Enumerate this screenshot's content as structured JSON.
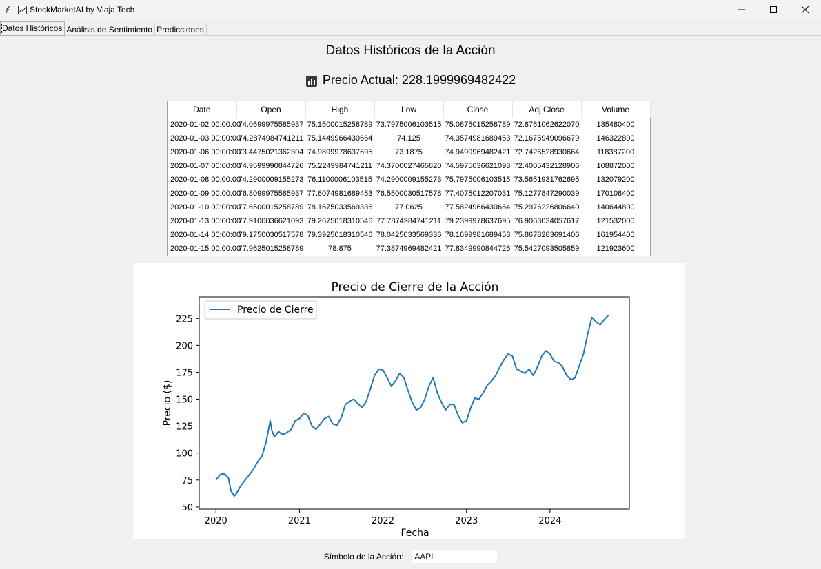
{
  "window": {
    "title": "StockMarketAI by Viaja Tech"
  },
  "tabs": [
    {
      "label": "Datos Históricos",
      "active": true
    },
    {
      "label": "Análisis de Sentimiento",
      "active": false
    },
    {
      "label": "Predicciones",
      "active": false
    }
  ],
  "main": {
    "heading": "Datos Históricos de la Acción",
    "price_label": "Precio Actual: 228.1999969482422"
  },
  "table": {
    "columns": [
      "Date",
      "Open",
      "High",
      "Low",
      "Close",
      "Adj Close",
      "Volume"
    ],
    "rows": [
      [
        "2020-01-02 00:00:00",
        "74.0599975585937",
        "75.1500015258789",
        "73.7975006103515",
        "75.0875015258789",
        "72.8761062622070",
        "135480400"
      ],
      [
        "2020-01-03 00:00:00",
        "74.2874984741211",
        "75.1449966430664",
        "74.125",
        "74.3574981689453",
        "72.1675949096679",
        "146322800"
      ],
      [
        "2020-01-06 00:00:00",
        "73.4475021362304",
        "74.9899978637695",
        "73.1875",
        "74.9499969482421",
        "72.7426528930664",
        "118387200"
      ],
      [
        "2020-01-07 00:00:00",
        "74.9599990844726",
        "75.2249984741211",
        "74.3700027465820",
        "74.5975036621093",
        "72.4005432128906",
        "108872000"
      ],
      [
        "2020-01-08 00:00:00",
        "74.2900009155273",
        "76.1100006103515",
        "74.2900009155273",
        "75.7975006103515",
        "73.5651931762695",
        "132079200"
      ],
      [
        "2020-01-09 00:00:00",
        "76.8099975585937",
        "77.6074981689453",
        "76.5500030517578",
        "77.4075012207031",
        "75.1277847290039",
        "170108400"
      ],
      [
        "2020-01-10 00:00:00",
        "77.6500015258789",
        "78.1675033569336",
        "77.0625",
        "77.5824966430664",
        "75.2976226806640",
        "140644800"
      ],
      [
        "2020-01-13 00:00:00",
        "77.9100036621093",
        "79.2675018310546",
        "77.7874984741211",
        "79.2399978637695",
        "76.9063034057617",
        "121532000"
      ],
      [
        "2020-01-14 00:00:00",
        "79.1750030517578",
        "79.3925018310546",
        "78.0425033569336",
        "78.1699981689453",
        "75.8678283691406",
        "161954400"
      ],
      [
        "2020-01-15 00:00:00",
        "77.9625015258789",
        "78.875",
        "77.3874969482421",
        "77.8349990844726",
        "75.5427093505859",
        "121923600"
      ]
    ]
  },
  "bottom": {
    "symbol_label": "Símbolo de la Acción:",
    "symbol_value": "AAPL"
  },
  "chart_data": {
    "type": "line",
    "title": "Precio de Cierre de la Acción",
    "xlabel": "Fecha",
    "ylabel": "Precio ($)",
    "legend": "top-left",
    "grid": false,
    "xlim": [
      2019.8,
      2024.95
    ],
    "ylim": [
      48,
      245
    ],
    "xticks": [
      2020,
      2021,
      2022,
      2023,
      2024
    ],
    "xtick_labels": [
      "2020",
      "2021",
      "2022",
      "2023",
      "2024"
    ],
    "yticks": [
      50,
      75,
      100,
      125,
      150,
      175,
      200,
      225
    ],
    "color": "#1f77b4",
    "series": [
      {
        "name": "Precio de Cierre",
        "x": [
          2020.0,
          2020.05,
          2020.1,
          2020.15,
          2020.18,
          2020.22,
          2020.25,
          2020.3,
          2020.35,
          2020.4,
          2020.45,
          2020.5,
          2020.55,
          2020.6,
          2020.65,
          2020.67,
          2020.7,
          2020.75,
          2020.8,
          2020.85,
          2020.9,
          2020.95,
          2021.0,
          2021.05,
          2021.1,
          2021.15,
          2021.2,
          2021.25,
          2021.3,
          2021.35,
          2021.4,
          2021.45,
          2021.5,
          2021.55,
          2021.6,
          2021.65,
          2021.7,
          2021.75,
          2021.8,
          2021.85,
          2021.9,
          2021.95,
          2022.0,
          2022.05,
          2022.1,
          2022.15,
          2022.2,
          2022.25,
          2022.3,
          2022.35,
          2022.4,
          2022.45,
          2022.5,
          2022.55,
          2022.6,
          2022.65,
          2022.7,
          2022.75,
          2022.8,
          2022.85,
          2022.9,
          2022.95,
          2023.0,
          2023.05,
          2023.1,
          2023.15,
          2023.2,
          2023.25,
          2023.3,
          2023.35,
          2023.4,
          2023.45,
          2023.5,
          2023.55,
          2023.6,
          2023.65,
          2023.7,
          2023.75,
          2023.8,
          2023.85,
          2023.9,
          2023.95,
          2024.0,
          2024.05,
          2024.1,
          2024.15,
          2024.2,
          2024.25,
          2024.3,
          2024.35,
          2024.4,
          2024.45,
          2024.5,
          2024.55,
          2024.6,
          2024.65,
          2024.7
        ],
        "y": [
          75,
          80,
          81,
          77,
          65,
          60,
          63,
          70,
          75,
          80,
          85,
          92,
          97,
          110,
          130,
          121,
          115,
          120,
          117,
          119,
          122,
          130,
          132,
          137,
          135,
          125,
          122,
          127,
          132,
          134,
          127,
          126,
          133,
          145,
          148,
          150,
          146,
          142,
          148,
          160,
          172,
          178,
          177,
          170,
          162,
          167,
          174,
          170,
          158,
          147,
          140,
          142,
          150,
          162,
          170,
          156,
          147,
          140,
          145,
          145,
          135,
          128,
          130,
          142,
          151,
          150,
          156,
          163,
          167,
          172,
          180,
          187,
          192,
          190,
          178,
          176,
          174,
          178,
          172,
          180,
          190,
          195,
          192,
          185,
          184,
          180,
          172,
          168,
          170,
          181,
          192,
          210,
          226,
          222,
          219,
          224,
          228
        ]
      }
    ]
  }
}
